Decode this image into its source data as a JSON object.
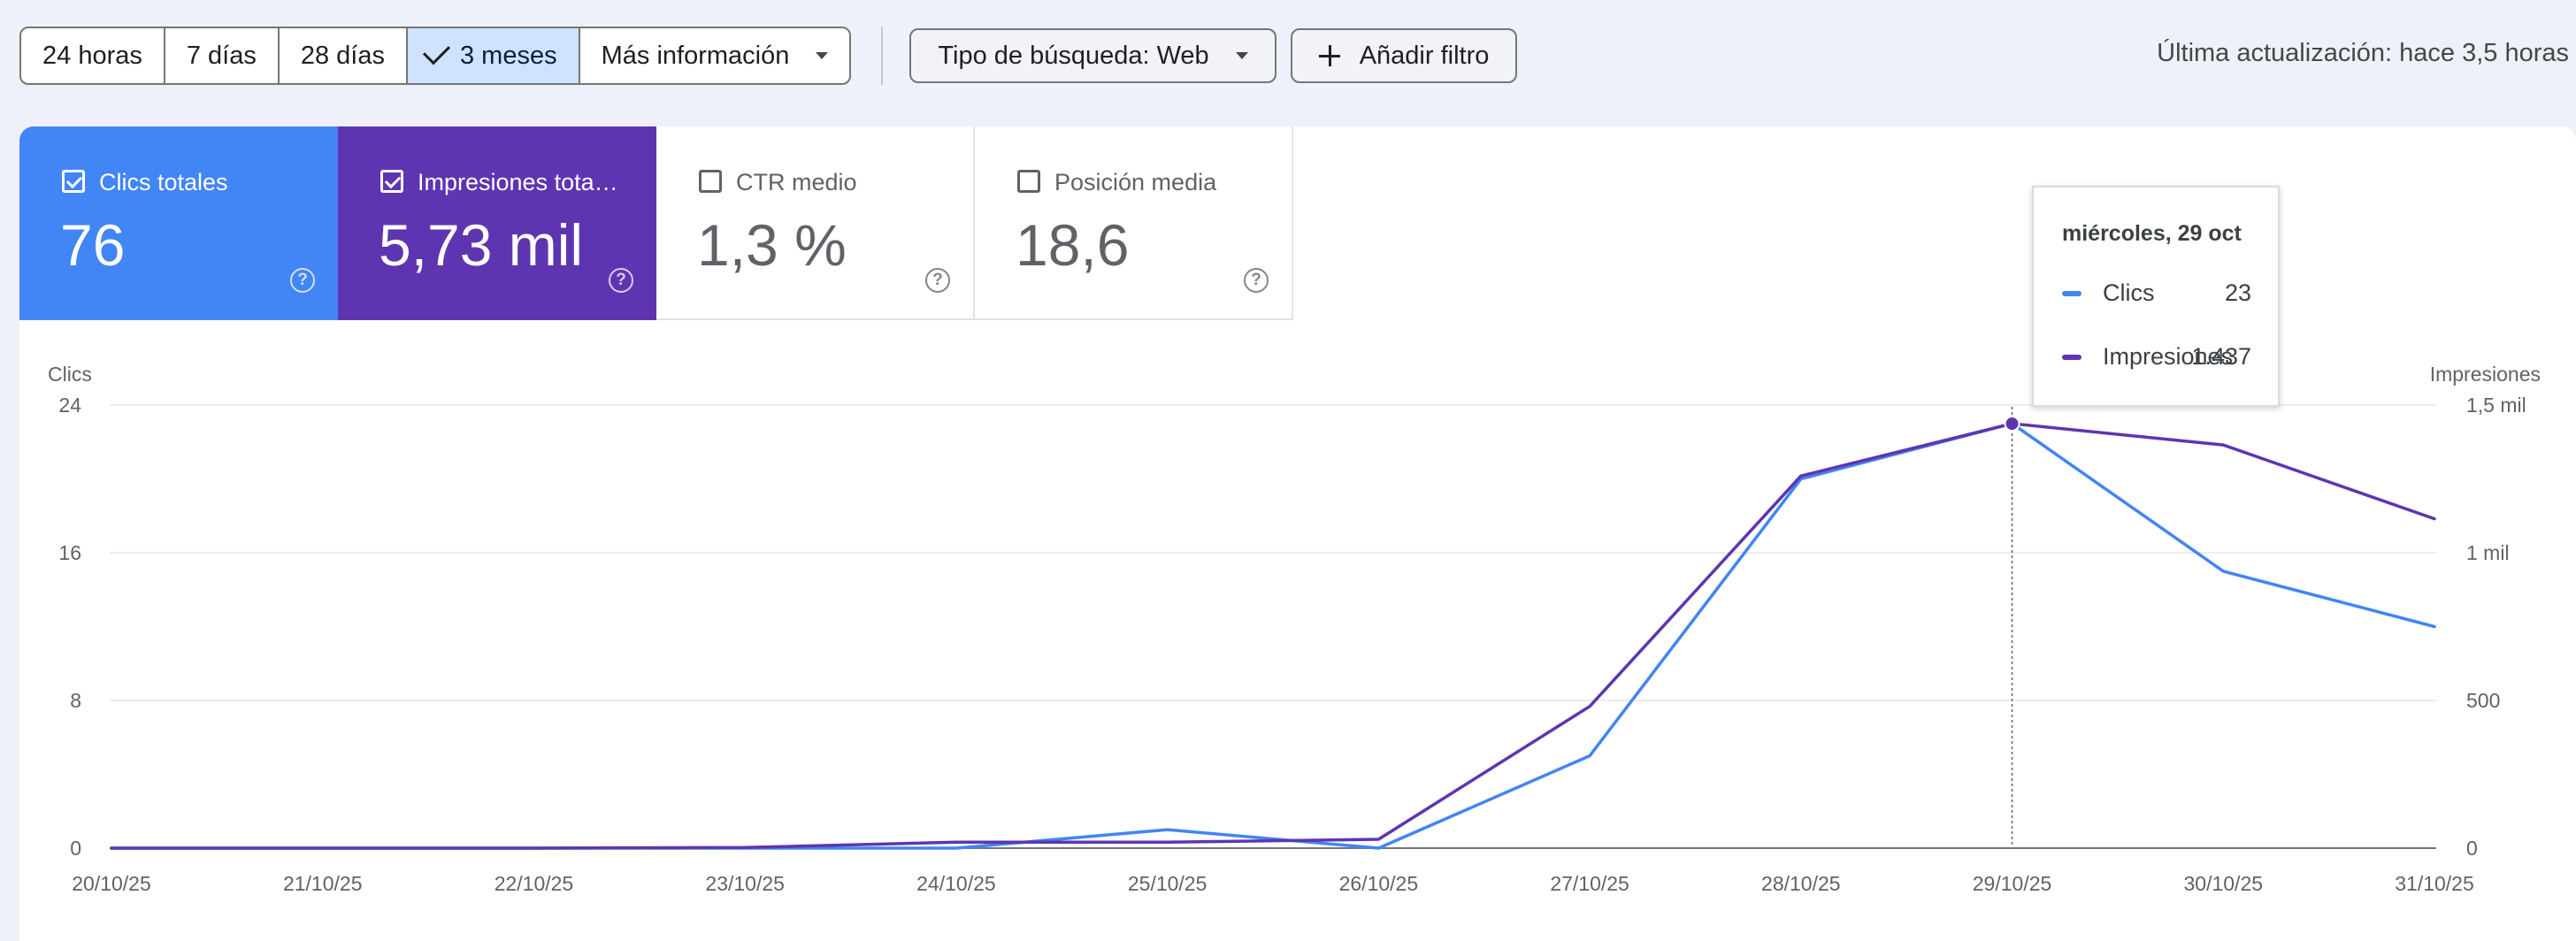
{
  "toolbar": {
    "ranges": [
      {
        "label": "24 horas",
        "active": false
      },
      {
        "label": "7 días",
        "active": false
      },
      {
        "label": "28 días",
        "active": false
      },
      {
        "label": "3 meses",
        "active": true
      },
      {
        "label": "Más información",
        "active": false
      }
    ],
    "search_type_label": "Tipo de búsqueda: Web",
    "add_filter_label": "Añadir filtro",
    "last_update": "Última actualización: hace 3,5 horas"
  },
  "metrics": [
    {
      "label": "Clics totales",
      "value": "76",
      "checked": true,
      "color": "#4285f4"
    },
    {
      "label": "Impresiones totales",
      "value": "5,73 mil",
      "checked": true,
      "color": "#5e35b1"
    },
    {
      "label": "CTR medio",
      "value": "1,3 %",
      "checked": false
    },
    {
      "label": "Posición media",
      "value": "18,6",
      "checked": false
    }
  ],
  "tooltip": {
    "title": "miércoles, 29 oct",
    "rows": [
      {
        "name": "Clics",
        "value": "23",
        "color": "#4285f4"
      },
      {
        "name": "Impresiones",
        "value": "1.437",
        "color": "#5e35b1"
      }
    ]
  },
  "chart_data": {
    "type": "line",
    "x": [
      "20/10/25",
      "21/10/25",
      "22/10/25",
      "23/10/25",
      "24/10/25",
      "25/10/25",
      "26/10/25",
      "27/10/25",
      "28/10/25",
      "29/10/25",
      "30/10/25",
      "31/10/25"
    ],
    "series": [
      {
        "name": "Clics",
        "axis": "left",
        "color": "#4285f4",
        "values": [
          0,
          0,
          0,
          0,
          0,
          1,
          0,
          5,
          20,
          23,
          15,
          12
        ]
      },
      {
        "name": "Impresiones",
        "axis": "right",
        "color": "#5e35b1",
        "values": [
          0,
          0,
          0,
          2,
          20,
          20,
          30,
          480,
          1260,
          1437,
          1365,
          1115
        ]
      }
    ],
    "ylabel_left": "Clics",
    "ylabel_right": "Impresiones",
    "yticks_left": [
      "0",
      "8",
      "16",
      "24"
    ],
    "yticks_right": [
      "0",
      "500",
      "1 mil",
      "1,5 mil"
    ],
    "ylim_left": [
      0,
      24
    ],
    "ylim_right": [
      0,
      1500
    ],
    "highlight_index": 9,
    "grid": true
  }
}
